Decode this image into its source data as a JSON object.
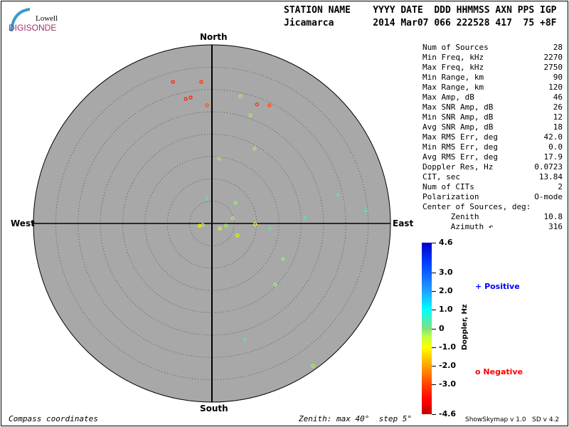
{
  "logo": {
    "line1": "Lowell",
    "line2": "DIGISONDE"
  },
  "header": {
    "labels": "STATION NAME    YYYY DATE  DDD HHMMSS AXN PPS IGP",
    "values": "Jicamarca       2014 Mar07 066 222528 417  75 +8F"
  },
  "compass": {
    "north": "North",
    "south": "South",
    "east": "East",
    "west": "West"
  },
  "stats": [
    {
      "label": "Num of Sources",
      "value": "28"
    },
    {
      "label": "Min Freq, kHz",
      "value": "2270"
    },
    {
      "label": "Max Freq, kHz",
      "value": "2750"
    },
    {
      "label": "Min Range, km",
      "value": "90"
    },
    {
      "label": "Max Range, km",
      "value": "120"
    },
    {
      "label": "Max Amp, dB",
      "value": "46"
    },
    {
      "label": "Max SNR Amp, dB",
      "value": "26"
    },
    {
      "label": "Min SNR Amp, dB",
      "value": "12"
    },
    {
      "label": "Avg SNR Amp, dB",
      "value": "18"
    },
    {
      "label": "Max RMS Err, deg",
      "value": "42.0"
    },
    {
      "label": "Min RMS Err, deg",
      "value": "0.0"
    },
    {
      "label": "Avg RMS Err, deg",
      "value": "17.9"
    },
    {
      "label": "Doppler Res, Hz",
      "value": "0.0723"
    },
    {
      "label": "CIT, sec",
      "value": "13.84"
    },
    {
      "label": "Num of CITs",
      "value": "2"
    },
    {
      "label": "Polarization",
      "value": "O-mode"
    },
    {
      "label": "Center of Sources, deg:",
      "value": ""
    },
    {
      "label": "      Zenith",
      "value": "10.8"
    },
    {
      "label": "      Azimuth ↶",
      "value": "316"
    }
  ],
  "footer": {
    "left": "Compass coordinates",
    "center": "Zenith: max 40°  step 5°",
    "version": "ShowSkymap v 1.0   SD v 4.2"
  },
  "colorbar": {
    "label": "Doppler, Hz",
    "ticks": [
      "4.6",
      "3.0",
      "2.0",
      "1.0",
      "0",
      "-1.0",
      "-2.0",
      "-3.0",
      "-4.6"
    ],
    "range": [
      -4.6,
      4.6
    ]
  },
  "legend": {
    "positive": "Positive",
    "negative": "Negative",
    "positive_symbol": "+",
    "negative_symbol": "o",
    "positive_color": "#0000ff",
    "negative_color": "#ff0000"
  },
  "colors": {
    "plot_bg": "#a8a8a8",
    "grid": "#555555",
    "logo_text": "#a0306a",
    "logo_arc": "#3a9ad0"
  },
  "chart_data": {
    "type": "scatter",
    "projection": "polar sky map, compass coordinates (North up, East right)",
    "zenith_max": 40,
    "zenith_step": 5,
    "points": [
      {
        "zenith": 32.9,
        "azimuth": 344.6,
        "doppler": -3.4
      },
      {
        "zenith": 31.8,
        "azimuth": 355.7,
        "doppler": -3.2
      },
      {
        "zenith": 28.5,
        "azimuth": 348.1,
        "doppler": -3.4
      },
      {
        "zenith": 28.6,
        "azimuth": 350.4,
        "doppler": -3.3
      },
      {
        "zenith": 26.5,
        "azimuth": 357.6,
        "doppler": -2.8
      },
      {
        "zenith": 29.2,
        "azimuth": 12.6,
        "doppler": -0.3
      },
      {
        "zenith": 28.5,
        "azimuth": 20.7,
        "doppler": -3.2
      },
      {
        "zenith": 29.4,
        "azimuth": 26.0,
        "doppler": -2.9
      },
      {
        "zenith": 25.7,
        "azimuth": 19.6,
        "doppler": -0.3
      },
      {
        "zenith": 19.3,
        "azimuth": 29.7,
        "doppler": -0.3
      },
      {
        "zenith": 14.6,
        "azimuth": 6.3,
        "doppler": -0.3
      },
      {
        "zenith": 5.7,
        "azimuth": 348.7,
        "doppler": 0.3
      },
      {
        "zenith": 7.0,
        "azimuth": 48.7,
        "doppler": -0.3
      },
      {
        "zenith": 4.8,
        "azimuth": 76.4,
        "doppler": -0.3
      },
      {
        "zenith": 3.2,
        "azimuth": 98.5,
        "doppler": -0.3
      },
      {
        "zenith": 2.1,
        "azimuth": 122.5,
        "doppler": -0.7
      },
      {
        "zenith": 6.3,
        "azimuth": 115.3,
        "doppler": -0.7
      },
      {
        "zenith": 9.7,
        "azimuth": 90.9,
        "doppler": -1.0
      },
      {
        "zenith": 13.0,
        "azimuth": 94.9,
        "doppler": 0.3
      },
      {
        "zenith": 2.8,
        "azimuth": 260.0,
        "doppler": -1.0
      },
      {
        "zenith": 2.1,
        "azimuth": 261.3,
        "doppler": -0.3
      },
      {
        "zenith": 20.8,
        "azimuth": 86.5,
        "doppler": 0.3
      },
      {
        "zenith": 28.9,
        "azimuth": 77.3,
        "doppler": 0.3
      },
      {
        "zenith": 34.7,
        "azimuth": 85.3,
        "doppler": 0.3
      },
      {
        "zenith": 17.8,
        "azimuth": 116.6,
        "doppler": -0.3
      },
      {
        "zenith": 19.7,
        "azimuth": 134.0,
        "doppler": -0.3
      },
      {
        "zenith": 27.0,
        "azimuth": 164.2,
        "doppler": 0.3
      },
      {
        "zenith": 39.1,
        "azimuth": 144.6,
        "doppler": -0.3
      }
    ]
  }
}
